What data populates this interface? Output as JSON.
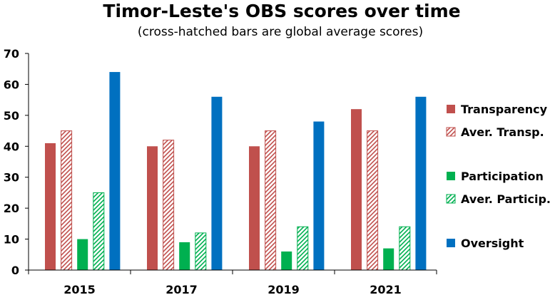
{
  "chart_data": {
    "type": "bar",
    "title": "Timor-Leste's OBS scores over time",
    "subtitle": "(cross-hatched bars are global average scores)",
    "categories": [
      "2015",
      "2017",
      "2019",
      "2021"
    ],
    "ylim": [
      0,
      70
    ],
    "yticks": [
      "0",
      "10",
      "20",
      "30",
      "40",
      "50",
      "60",
      "70"
    ],
    "series": [
      {
        "name": "Transparency",
        "values": [
          41,
          40,
          40,
          52
        ],
        "color": "#c0504d",
        "hatched": false
      },
      {
        "name": "Aver. Transp.",
        "values": [
          45,
          42,
          45,
          45
        ],
        "color": "#c0504d",
        "hatched": true
      },
      {
        "name": "Participation",
        "values": [
          10,
          9,
          6,
          7
        ],
        "color": "#00b050",
        "hatched": false
      },
      {
        "name": "Aver. Particip.",
        "values": [
          25,
          12,
          14,
          14
        ],
        "color": "#00b050",
        "hatched": true
      },
      {
        "name": "Oversight",
        "values": [
          64,
          56,
          48,
          56
        ],
        "color": "#0070c0",
        "hatched": false
      }
    ],
    "legend": "right"
  }
}
